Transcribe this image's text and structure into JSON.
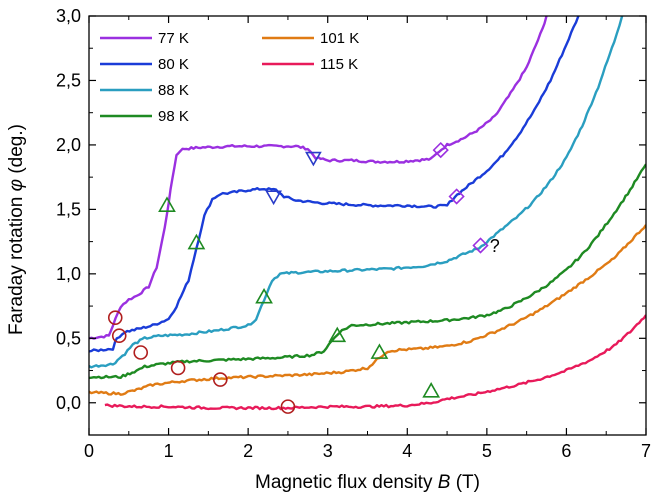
{
  "chart_data": {
    "type": "line",
    "title": "",
    "xlabel": "Magnetic flux density",
    "xlabel_symbol": "B",
    "xlabel_unit": "(T)",
    "ylabel": "Faraday rotation",
    "ylabel_symbol": "φ",
    "ylabel_unit": "(deg.)",
    "xlim": [
      0,
      7
    ],
    "ylim": [
      -0.25,
      3.0
    ],
    "xticks": [
      0,
      1,
      2,
      3,
      4,
      5,
      6,
      7
    ],
    "yticks": [
      0.0,
      0.5,
      1.0,
      1.5,
      2.0,
      2.5,
      3.0
    ],
    "xtick_labels": [
      "0",
      "1",
      "2",
      "3",
      "4",
      "5",
      "6",
      "7"
    ],
    "ytick_labels": [
      "0,0",
      "0,5",
      "1,0",
      "1,5",
      "2,0",
      "2,5",
      "3,0"
    ],
    "grid": false,
    "legend_position": "top-left",
    "series": [
      {
        "name": "77 K",
        "color": "#9b30e0",
        "x": [
          0.0,
          0.25,
          0.3,
          0.4,
          0.5,
          0.6,
          0.75,
          0.85,
          0.95,
          1.0,
          1.05,
          1.1,
          1.15,
          1.2,
          1.4,
          1.8,
          2.2,
          2.6,
          2.75,
          2.85,
          3.0,
          3.3,
          3.6,
          3.9,
          4.1,
          4.3,
          4.4,
          4.5,
          4.7,
          4.9,
          5.1,
          5.3,
          5.5,
          5.7,
          5.75
        ],
        "y": [
          0.5,
          0.52,
          0.6,
          0.75,
          0.8,
          0.83,
          0.9,
          1.05,
          1.35,
          1.55,
          1.75,
          1.92,
          1.96,
          1.97,
          1.98,
          1.99,
          1.99,
          1.99,
          1.97,
          1.9,
          1.88,
          1.88,
          1.87,
          1.87,
          1.88,
          1.89,
          1.95,
          2.0,
          2.05,
          2.12,
          2.22,
          2.4,
          2.6,
          2.9,
          3.0
        ]
      },
      {
        "name": "80 K",
        "color": "#1a3cd8",
        "x": [
          0.0,
          0.3,
          0.35,
          0.45,
          0.6,
          0.8,
          1.0,
          1.1,
          1.25,
          1.35,
          1.45,
          1.55,
          1.65,
          1.8,
          2.0,
          2.2,
          2.35,
          2.45,
          2.6,
          2.9,
          3.2,
          3.6,
          4.0,
          4.3,
          4.5,
          4.6,
          4.8,
          5.0,
          5.2,
          5.4,
          5.6,
          5.8,
          6.0,
          6.15
        ],
        "y": [
          0.4,
          0.42,
          0.5,
          0.55,
          0.57,
          0.6,
          0.65,
          0.75,
          0.95,
          1.2,
          1.45,
          1.58,
          1.62,
          1.63,
          1.65,
          1.66,
          1.65,
          1.6,
          1.57,
          1.55,
          1.54,
          1.53,
          1.53,
          1.52,
          1.53,
          1.6,
          1.7,
          1.8,
          1.92,
          2.08,
          2.27,
          2.5,
          2.78,
          3.0
        ]
      },
      {
        "name": "88 K",
        "color": "#2a9ec0",
        "x": [
          0.0,
          0.3,
          0.45,
          0.55,
          0.7,
          0.9,
          1.2,
          1.6,
          2.0,
          2.1,
          2.2,
          2.3,
          2.4,
          2.6,
          3.0,
          3.4,
          3.8,
          4.2,
          4.5,
          4.7,
          4.9,
          5.0,
          5.2,
          5.4,
          5.6,
          5.8,
          6.0,
          6.2,
          6.4,
          6.6,
          6.7
        ],
        "y": [
          0.28,
          0.3,
          0.38,
          0.45,
          0.5,
          0.52,
          0.53,
          0.56,
          0.6,
          0.65,
          0.8,
          0.95,
          1.0,
          1.01,
          1.02,
          1.03,
          1.04,
          1.06,
          1.1,
          1.15,
          1.2,
          1.25,
          1.35,
          1.45,
          1.57,
          1.72,
          1.9,
          2.15,
          2.45,
          2.8,
          3.0
        ]
      },
      {
        "name": "98 K",
        "color": "#1e8a22",
        "x": [
          0.0,
          0.4,
          0.6,
          0.7,
          0.9,
          1.2,
          1.6,
          2.0,
          2.4,
          2.8,
          2.95,
          3.05,
          3.15,
          3.3,
          3.6,
          3.9,
          4.2,
          4.5,
          4.8,
          5.0,
          5.2,
          5.4,
          5.6,
          5.8,
          6.0,
          6.2,
          6.4,
          6.6,
          6.8,
          7.0
        ],
        "y": [
          0.2,
          0.2,
          0.25,
          0.28,
          0.3,
          0.32,
          0.33,
          0.34,
          0.35,
          0.37,
          0.4,
          0.48,
          0.55,
          0.6,
          0.61,
          0.62,
          0.63,
          0.64,
          0.66,
          0.68,
          0.72,
          0.78,
          0.85,
          0.93,
          1.03,
          1.15,
          1.3,
          1.47,
          1.65,
          1.85
        ]
      },
      {
        "name": "101 K",
        "color": "#e07b14",
        "x": [
          0.0,
          0.4,
          0.6,
          0.8,
          1.2,
          1.6,
          2.0,
          2.4,
          2.8,
          3.2,
          3.5,
          3.65,
          3.75,
          3.9,
          4.2,
          4.5,
          4.8,
          5.1,
          5.4,
          5.7,
          6.0,
          6.3,
          6.6,
          6.8,
          7.0
        ],
        "y": [
          0.08,
          0.07,
          0.1,
          0.14,
          0.17,
          0.19,
          0.2,
          0.21,
          0.22,
          0.24,
          0.27,
          0.35,
          0.4,
          0.41,
          0.42,
          0.44,
          0.48,
          0.55,
          0.63,
          0.73,
          0.85,
          0.98,
          1.12,
          1.25,
          1.38
        ]
      },
      {
        "name": "115 K",
        "color": "#e81a5a",
        "x": [
          0.2,
          0.6,
          1.0,
          1.5,
          2.0,
          2.5,
          3.0,
          3.5,
          4.0,
          4.3,
          4.5,
          4.8,
          5.1,
          5.4,
          5.7,
          6.0,
          6.3,
          6.6,
          6.8,
          7.0
        ],
        "y": [
          -0.02,
          -0.03,
          -0.03,
          -0.04,
          -0.04,
          -0.04,
          -0.03,
          -0.03,
          -0.02,
          0.0,
          0.03,
          0.06,
          0.1,
          0.14,
          0.19,
          0.25,
          0.33,
          0.44,
          0.55,
          0.68
        ]
      }
    ],
    "markers": {
      "circles": [
        {
          "x": 0.33,
          "y": 0.66,
          "series": "77 K"
        },
        {
          "x": 0.38,
          "y": 0.52,
          "series": "80 K"
        },
        {
          "x": 0.65,
          "y": 0.39,
          "series": "88 K"
        },
        {
          "x": 1.12,
          "y": 0.27,
          "series": "98 K"
        },
        {
          "x": 1.65,
          "y": 0.18,
          "series": "101 K"
        },
        {
          "x": 2.5,
          "y": -0.03,
          "series": "115 K"
        }
      ],
      "triangles_up": [
        {
          "x": 0.98,
          "y": 1.53,
          "series": "77 K"
        },
        {
          "x": 1.35,
          "y": 1.24,
          "series": "80 K"
        },
        {
          "x": 2.2,
          "y": 0.82,
          "series": "88 K"
        },
        {
          "x": 3.12,
          "y": 0.52,
          "series": "98 K"
        },
        {
          "x": 3.65,
          "y": 0.39,
          "series": "101 K"
        },
        {
          "x": 4.3,
          "y": 0.09,
          "series": "115 K"
        }
      ],
      "triangles_down": [
        {
          "x": 2.82,
          "y": 1.9,
          "series": "77 K"
        },
        {
          "x": 2.32,
          "y": 1.6,
          "series": "80 K"
        }
      ],
      "diamonds": [
        {
          "x": 4.42,
          "y": 1.96,
          "series": "77 K"
        },
        {
          "x": 4.62,
          "y": 1.6,
          "series": "80 K"
        },
        {
          "x": 4.92,
          "y": 1.22,
          "series": "88 K"
        }
      ]
    },
    "annotations": [
      {
        "text": "?",
        "x": 5.1,
        "y": 1.17
      }
    ],
    "marker_colors": {
      "circle": "#b01e1e",
      "triangle": "#1e8a22",
      "triangle_down": "#2a3cc8",
      "diamond": "#9b30e0"
    }
  }
}
